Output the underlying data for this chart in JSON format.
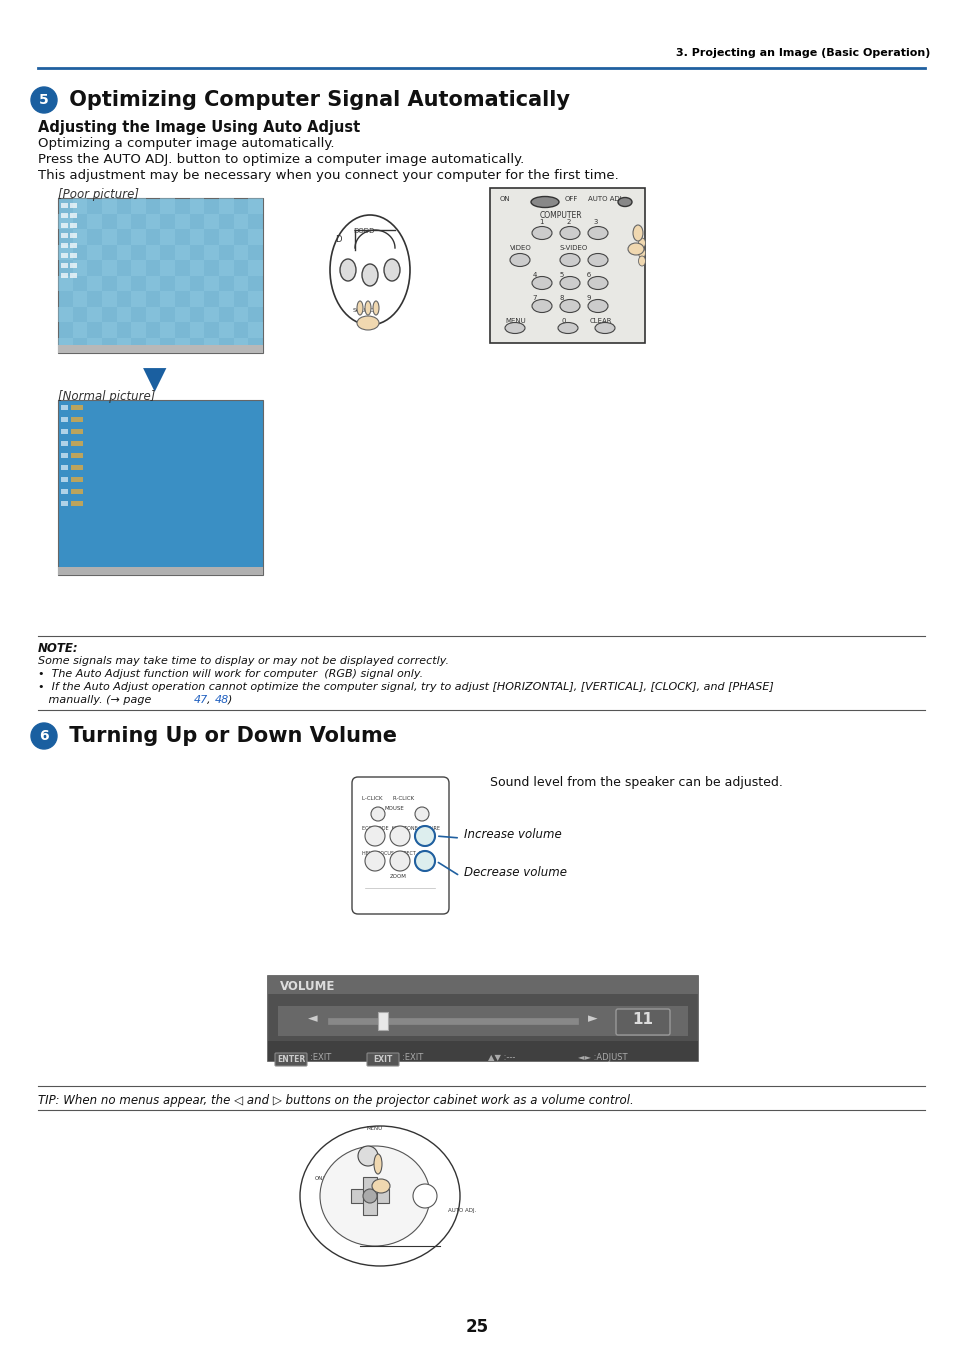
{
  "page_bg": "#ffffff",
  "header_text": "3. Projecting an Image (Basic Operation)",
  "header_line_color": "#2060a0",
  "section5_num": "5",
  "section5_title": " Optimizing Computer Signal Automatically",
  "section5_subtitle": "Adjusting the Image Using Auto Adjust",
  "section5_body": [
    "Optimizing a computer image automatically.",
    "Press the AUTO ADJ. button to optimize a computer image automatically.",
    "This adjustment may be necessary when you connect your computer for the first time."
  ],
  "poor_label": "[Poor picture]",
  "normal_label": "[Normal picture]",
  "note_title": "NOTE:",
  "note_line1": "Some signals may take time to display or may not be displayed correctly.",
  "note_line2": "•  The Auto Adjust function will work for computer  (RGB) signal only.",
  "note_line3": "•  If the Auto Adjust operation cannot optimize the computer signal, try to adjust [HORIZONTAL], [VERTICAL], [CLOCK], and [PHASE]",
  "note_line4": "   manually. (→ page 47, 48)",
  "section6_num": "6",
  "section6_title": " Turning Up or Down Volume",
  "section6_sound_text": "Sound level from the speaker can be adjusted.",
  "increase_label": "Increase volume",
  "decrease_label": "Decrease volume",
  "tip_text": "TIP: When no menus appear, the ◁ and ▷ buttons on the projector cabinet work as a volume control.",
  "page_num": "25",
  "blue_dark": "#1a5fa0",
  "blue_screen_poor": "#7ab8d4",
  "blue_screen_normal": "#3a8fc4",
  "volume_num": "11"
}
